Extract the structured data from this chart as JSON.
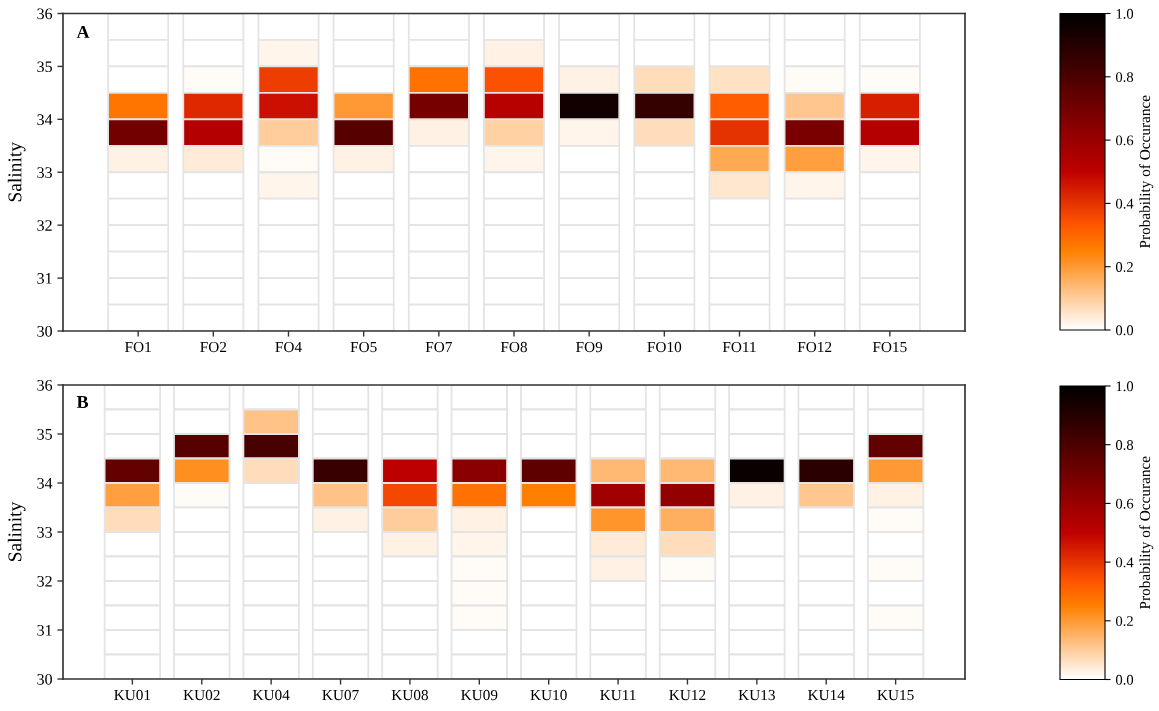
{
  "chart_data": [
    {
      "type": "heatmap",
      "title": "A",
      "ylabel": "Salinity",
      "clabel": "Probability of Occurance",
      "categories": [
        "FO1",
        "FO2",
        "FO4",
        "FO5",
        "FO7",
        "FO8",
        "FO9",
        "FO10",
        "FO11",
        "FO12",
        "FO15"
      ],
      "cells": [
        [
          0,
          0,
          0,
          0,
          0,
          0,
          0,
          0,
          0,
          0,
          0
        ],
        [
          0,
          0,
          0.02,
          0,
          0,
          0.03,
          0,
          0,
          0,
          0,
          0
        ],
        [
          0,
          0.01,
          0.38,
          0,
          0.28,
          0.34,
          0.03,
          0.07,
          0.06,
          0.01,
          0.01
        ],
        [
          0.27,
          0.42,
          0.47,
          0.2,
          0.69,
          0.52,
          0.95,
          0.86,
          0.32,
          0.11,
          0.44
        ],
        [
          0.7,
          0.53,
          0.1,
          0.77,
          0.03,
          0.09,
          0.02,
          0.07,
          0.4,
          0.68,
          0.53
        ],
        [
          0.03,
          0.04,
          0.01,
          0.03,
          0,
          0.02,
          0,
          0,
          0.17,
          0.19,
          0.02
        ],
        [
          0,
          0,
          0.02,
          0,
          0,
          0,
          0,
          0,
          0.05,
          0.02,
          0
        ],
        [
          0,
          0,
          0,
          0,
          0,
          0,
          0,
          0,
          0,
          0,
          0
        ],
        [
          0,
          0,
          0,
          0,
          0,
          0,
          0,
          0,
          0,
          0,
          0
        ],
        [
          0,
          0,
          0,
          0,
          0,
          0,
          0,
          0,
          0,
          0,
          0
        ],
        [
          0,
          0,
          0,
          0,
          0,
          0,
          0,
          0,
          0,
          0,
          0
        ],
        [
          0,
          0,
          0,
          0,
          0,
          0,
          0,
          0,
          0,
          0,
          0
        ]
      ],
      "ylim": [
        30,
        36
      ],
      "yticks": [
        30,
        31,
        32,
        33,
        34,
        35,
        36
      ],
      "clim": [
        0,
        1
      ],
      "cticks": [
        {
          "value": 0,
          "label": "0.0"
        },
        {
          "value": 0.2,
          "label": "0.2"
        },
        {
          "value": 0.4,
          "label": "0.4"
        },
        {
          "value": 0.6,
          "label": "0.6"
        },
        {
          "value": 0.8,
          "label": "0.8"
        },
        {
          "value": 1,
          "label": "1.0"
        }
      ]
    },
    {
      "type": "heatmap",
      "title": "B",
      "ylabel": "Salinity",
      "clabel": "Probability of Occurance",
      "categories": [
        "KU01",
        "KU02",
        "KU04",
        "KU07",
        "KU08",
        "KU09",
        "KU10",
        "KU11",
        "KU12",
        "KU13",
        "KU14",
        "KU15"
      ],
      "cells": [
        [
          0,
          0,
          0,
          0,
          0,
          0,
          0,
          0,
          0,
          0,
          0,
          0
        ],
        [
          0,
          0,
          0.12,
          0,
          0,
          0,
          0,
          0,
          0,
          0,
          0,
          0
        ],
        [
          0,
          0.77,
          0.81,
          0,
          0,
          0,
          0,
          0,
          0,
          0,
          0,
          0.74
        ],
        [
          0.74,
          0.22,
          0.07,
          0.85,
          0.51,
          0.64,
          0.75,
          0.14,
          0.14,
          0.97,
          0.89,
          0.2
        ],
        [
          0.19,
          0.01,
          0,
          0.12,
          0.36,
          0.28,
          0.25,
          0.58,
          0.62,
          0.03,
          0.11,
          0.03
        ],
        [
          0.07,
          0,
          0,
          0.03,
          0.1,
          0.03,
          0,
          0.21,
          0.16,
          0,
          0,
          0.01
        ],
        [
          0,
          0,
          0,
          0,
          0.03,
          0.02,
          0,
          0.04,
          0.07,
          0,
          0,
          0
        ],
        [
          0,
          0,
          0,
          0,
          0,
          0.01,
          0,
          0.03,
          0.01,
          0,
          0,
          0.01
        ],
        [
          0,
          0,
          0,
          0,
          0,
          0.01,
          0,
          0,
          0,
          0,
          0,
          0
        ],
        [
          0,
          0,
          0,
          0,
          0,
          0.01,
          0,
          0,
          0,
          0,
          0,
          0.01
        ],
        [
          0,
          0,
          0,
          0,
          0,
          0,
          0,
          0,
          0,
          0,
          0,
          0
        ],
        [
          0,
          0,
          0,
          0,
          0,
          0,
          0,
          0,
          0,
          0,
          0,
          0
        ]
      ],
      "ylim": [
        30,
        36
      ],
      "yticks": [
        30,
        31,
        32,
        33,
        34,
        35,
        36
      ],
      "clim": [
        0,
        1
      ],
      "cticks": [
        {
          "value": 0,
          "label": "0.0"
        },
        {
          "value": 0.2,
          "label": "0.2"
        },
        {
          "value": 0.4,
          "label": "0.4"
        },
        {
          "value": 0.6,
          "label": "0.6"
        },
        {
          "value": 0.8,
          "label": "0.8"
        },
        {
          "value": 1,
          "label": "1.0"
        }
      ]
    }
  ]
}
